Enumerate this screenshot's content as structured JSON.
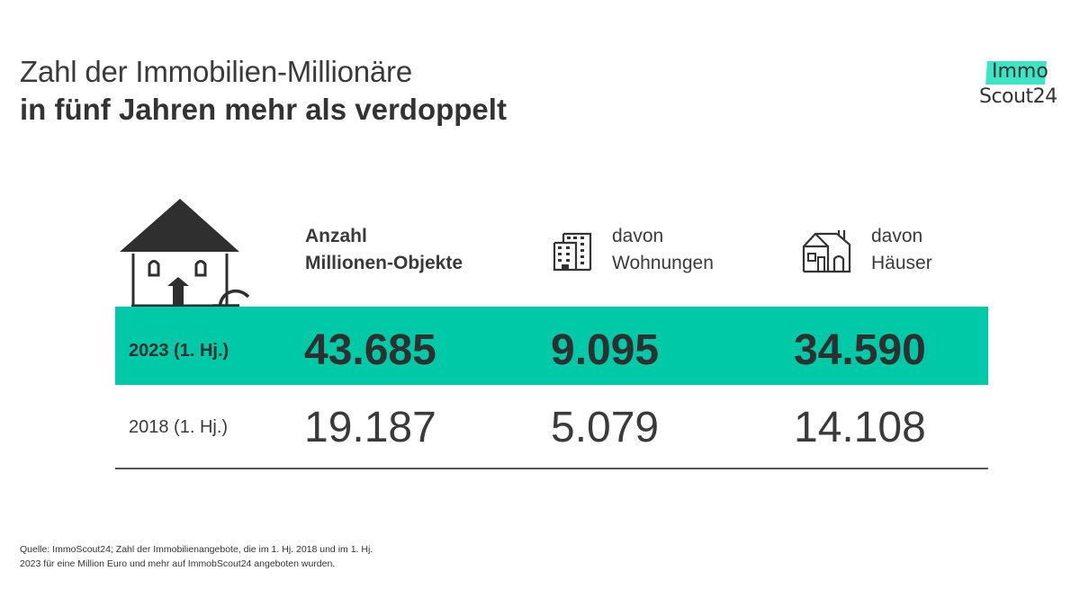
{
  "title": {
    "line1": "Zahl der Immobilien-Millionäre",
    "line2": "in fünf Jahren mehr als verdoppelt"
  },
  "logo": {
    "line1": "Immo",
    "line2": "Scout24",
    "accent": "#3ee5c4"
  },
  "columns": [
    {
      "line1": "Anzahl",
      "line2": "Millionen-Objekte",
      "icon": "house-euro-icon"
    },
    {
      "line1": "davon",
      "line2": "Wohnungen",
      "icon": "apartment-building-icon"
    },
    {
      "line1": "davon",
      "line2": "Häuser",
      "icon": "houses-icon"
    }
  ],
  "colors": {
    "highlight": "#00c9a7",
    "text": "#3a3a3a"
  },
  "chart_data": {
    "type": "table",
    "title": "Zahl der Immobilien-Millionäre in fünf Jahren mehr als verdoppelt",
    "columns": [
      "Anzahl Millionen-Objekte",
      "davon Wohnungen",
      "davon Häuser"
    ],
    "rows": [
      {
        "label": "2023 (1. Hj.)",
        "values": [
          "43.685",
          "9.095",
          "34.590"
        ],
        "highlight": true
      },
      {
        "label": "2018 (1. Hj.)",
        "values": [
          "19.187",
          "5.079",
          "14.108"
        ],
        "highlight": false
      }
    ]
  },
  "footer": {
    "line1": "Quelle: ImmoScout24; Zahl der Immobilienangebote, die im 1. Hj. 2018 und im 1. Hj.",
    "line2": "2023 für eine Million Euro und mehr auf ImmobScout24 angeboten wurden."
  }
}
